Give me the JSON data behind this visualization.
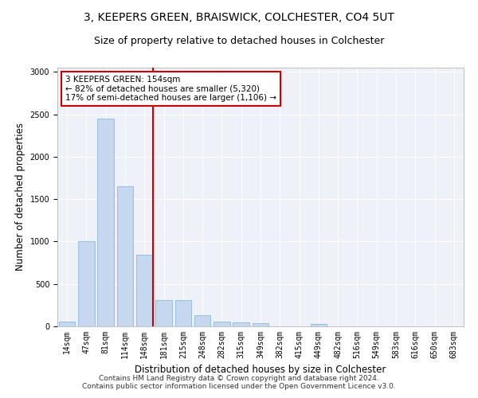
{
  "title": "3, KEEPERS GREEN, BRAISWICK, COLCHESTER, CO4 5UT",
  "subtitle": "Size of property relative to detached houses in Colchester",
  "xlabel": "Distribution of detached houses by size in Colchester",
  "ylabel": "Number of detached properties",
  "categories": [
    "14sqm",
    "47sqm",
    "81sqm",
    "114sqm",
    "148sqm",
    "181sqm",
    "215sqm",
    "248sqm",
    "282sqm",
    "315sqm",
    "349sqm",
    "382sqm",
    "415sqm",
    "449sqm",
    "482sqm",
    "516sqm",
    "549sqm",
    "583sqm",
    "616sqm",
    "650sqm",
    "683sqm"
  ],
  "values": [
    60,
    1000,
    2450,
    1650,
    840,
    310,
    310,
    130,
    60,
    50,
    40,
    0,
    0,
    30,
    0,
    0,
    0,
    0,
    0,
    0,
    0
  ],
  "bar_color": "#c5d8f0",
  "bar_edge_color": "#7db3d8",
  "vline_index": 4,
  "vline_color": "#cc0000",
  "annotation_text": "3 KEEPERS GREEN: 154sqm\n← 82% of detached houses are smaller (5,320)\n17% of semi-detached houses are larger (1,106) →",
  "annotation_box_color": "#ffffff",
  "annotation_box_edge": "#cc0000",
  "ylim": [
    0,
    3050
  ],
  "title_fontsize": 10,
  "subtitle_fontsize": 9,
  "xlabel_fontsize": 8.5,
  "ylabel_fontsize": 8.5,
  "tick_fontsize": 7,
  "annotation_fontsize": 7.5,
  "footer": "Contains HM Land Registry data © Crown copyright and database right 2024.\nContains public sector information licensed under the Open Government Licence v3.0.",
  "footer_fontsize": 6.5,
  "background_color": "#ffffff",
  "plot_bg_color": "#eef2f8",
  "grid_color": "#ffffff"
}
